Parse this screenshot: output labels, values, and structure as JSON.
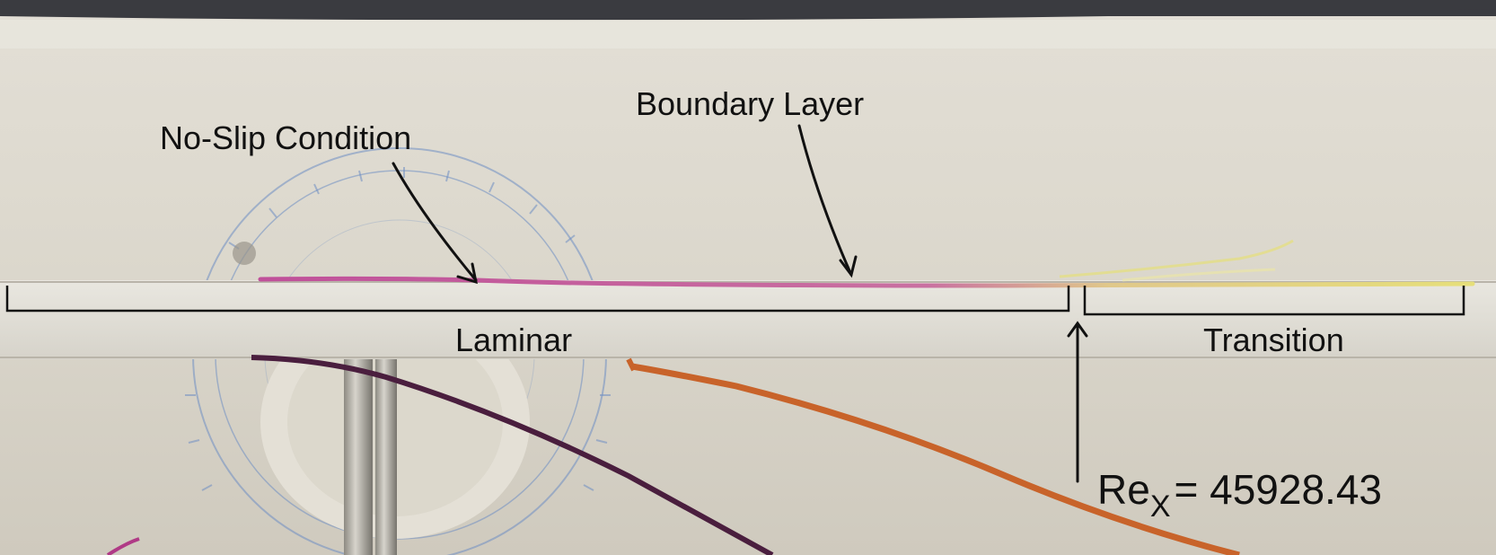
{
  "annotations": {
    "no_slip": "No-Slip Condition",
    "boundary_layer": "Boundary Layer",
    "laminar": "Laminar",
    "transition": "Transition",
    "reynolds_symbol": "Re",
    "reynolds_subscript": "X",
    "reynolds_value": "= 45928.43"
  },
  "colors": {
    "dye_magenta": "#c0509a",
    "dye_yellow": "#e6df7a",
    "wire_purple": "#4a1e3e",
    "wire_orange": "#c8632a",
    "protractor_blue": "#6f8fc4",
    "ink": "#111111"
  }
}
